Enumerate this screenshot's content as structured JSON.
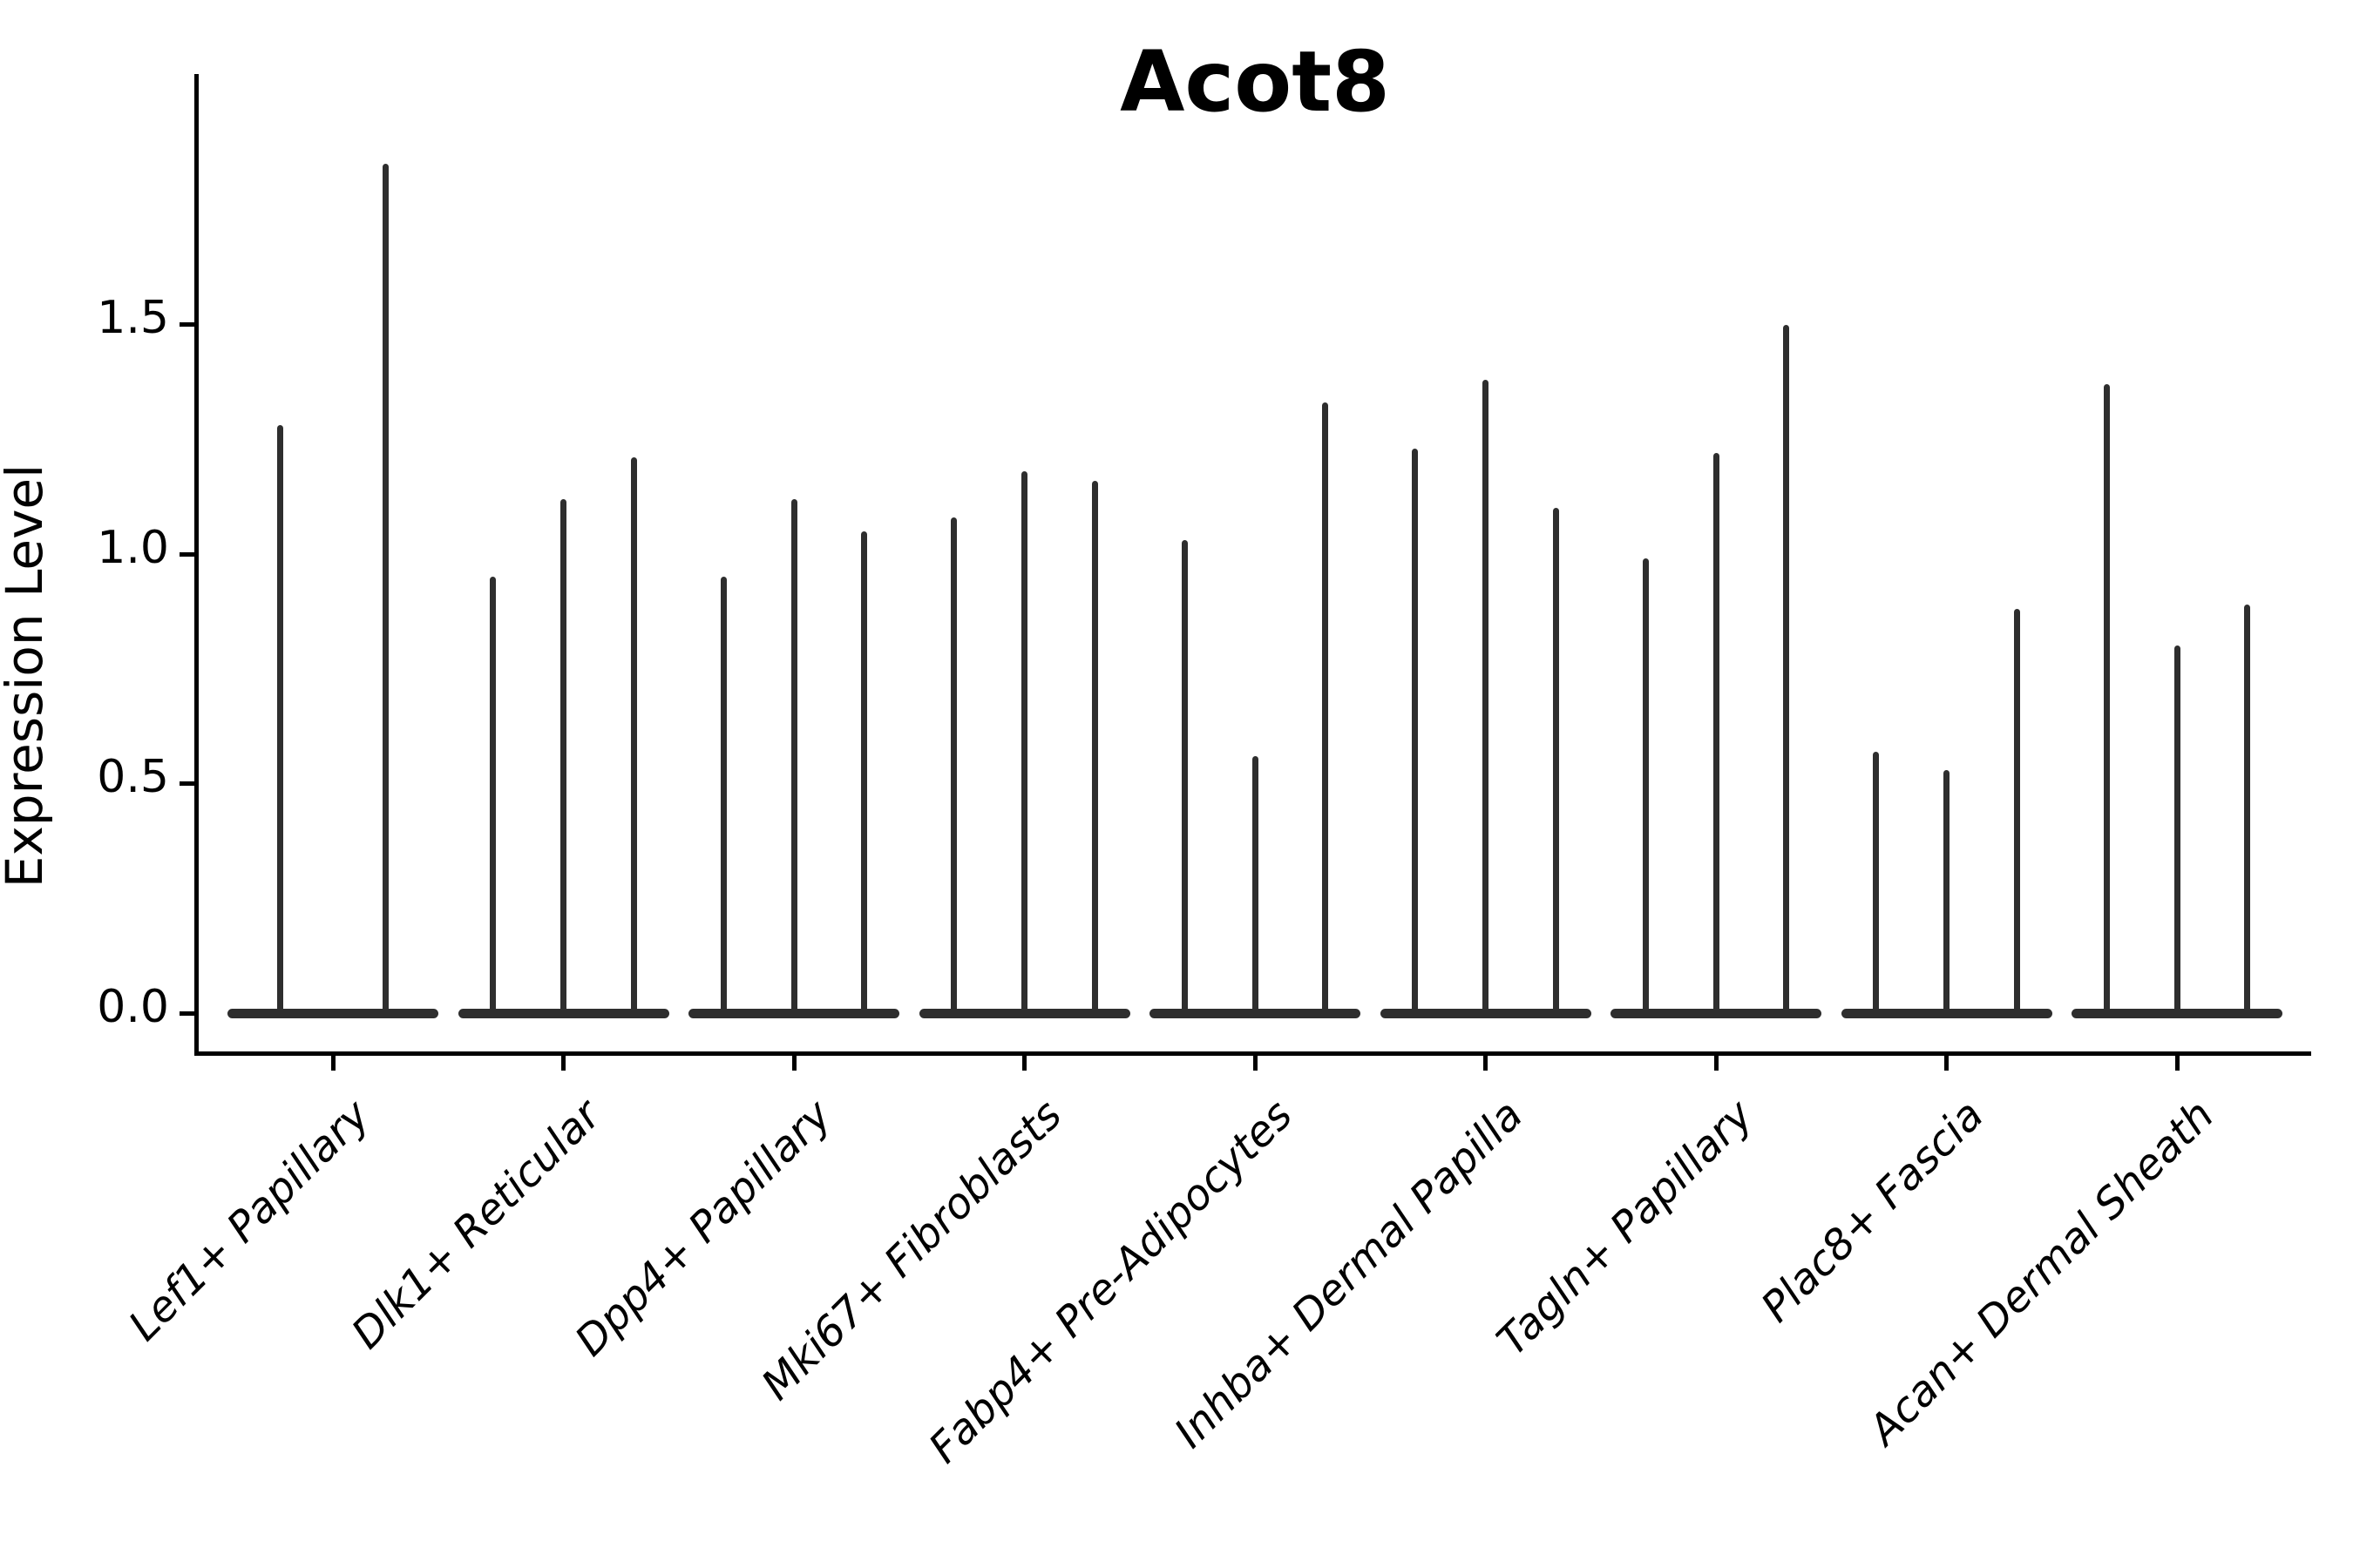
{
  "chart_data": {
    "type": "violin",
    "title": "Acot8",
    "xlabel": "",
    "ylabel": "Expression Level",
    "ylim": [
      -0.08,
      2.05
    ],
    "ytick_values": [
      0.0,
      0.5,
      1.0,
      1.5
    ],
    "ytick_labels": [
      "0.0",
      "0.5",
      "1.0",
      "1.5"
    ],
    "grid": false,
    "legend_position": "none",
    "violin_color": "#2e2e2e",
    "style_note": "thin spike violins: flat base at 0 expression with narrow vertical spike to max expression; 2-3 violins per category",
    "groups": [
      {
        "label": "Lef1+ Papillary",
        "violin_peaks": [
          1.28,
          1.85
        ]
      },
      {
        "label": "Dlk1+ Reticular",
        "violin_peaks": [
          0.95,
          1.12,
          1.21
        ]
      },
      {
        "label": "Dpp4+ Papillary",
        "violin_peaks": [
          0.95,
          1.12,
          1.05
        ]
      },
      {
        "label": "Mki67+ Fibroblasts",
        "violin_peaks": [
          1.08,
          1.18,
          1.16
        ]
      },
      {
        "label": "Fabp4+ Pre-Adipocytes",
        "violin_peaks": [
          1.03,
          0.56,
          1.33
        ]
      },
      {
        "label": "Inhba+ Dermal Papilla",
        "violin_peaks": [
          1.23,
          1.38,
          1.1
        ]
      },
      {
        "label": "Tagln+ Papillary",
        "violin_peaks": [
          0.99,
          1.22,
          1.5
        ]
      },
      {
        "label": "Plac8+ Fascia",
        "violin_peaks": [
          0.57,
          0.53,
          0.88
        ]
      },
      {
        "label": "Acan+ Dermal Sheath",
        "violin_peaks": [
          1.37,
          0.8,
          0.89
        ]
      }
    ]
  }
}
